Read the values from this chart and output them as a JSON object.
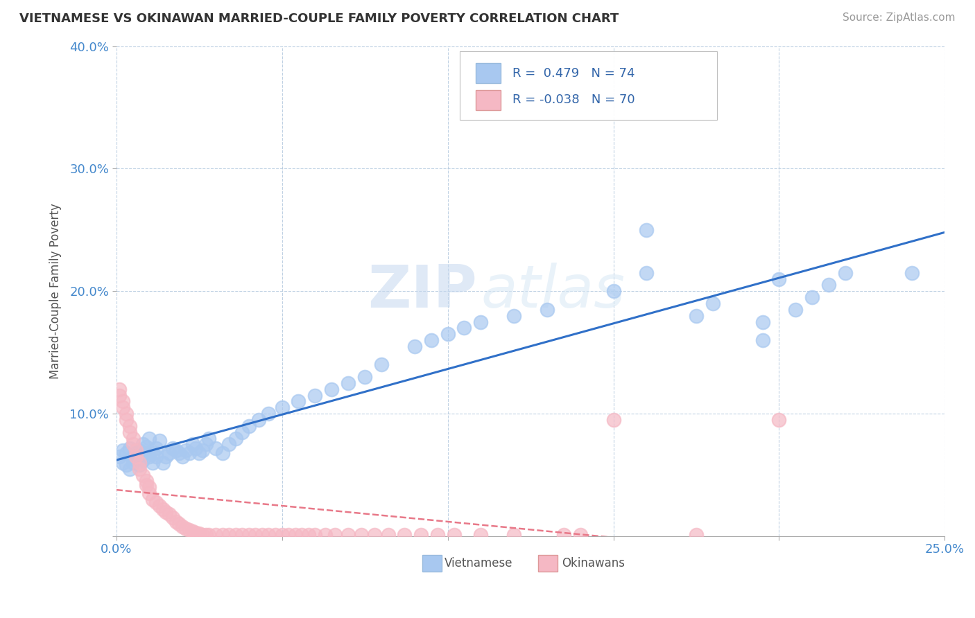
{
  "title": "VIETNAMESE VS OKINAWAN MARRIED-COUPLE FAMILY POVERTY CORRELATION CHART",
  "source": "Source: ZipAtlas.com",
  "ylabel": "Married-Couple Family Poverty",
  "xlim": [
    0.0,
    0.25
  ],
  "ylim": [
    0.0,
    0.4
  ],
  "xticks": [
    0.0,
    0.05,
    0.1,
    0.15,
    0.2,
    0.25
  ],
  "xticklabels": [
    "0.0%",
    "",
    "",
    "",
    "",
    "25.0%"
  ],
  "yticks": [
    0.0,
    0.1,
    0.2,
    0.3,
    0.4
  ],
  "yticklabels": [
    "",
    "10.0%",
    "20.0%",
    "30.0%",
    "40.0%"
  ],
  "blue_R": 0.479,
  "blue_N": 74,
  "pink_R": -0.038,
  "pink_N": 70,
  "blue_color": "#a8c8f0",
  "pink_color": "#f5b8c4",
  "blue_line_color": "#3070c8",
  "pink_line_color": "#e87888",
  "watermark_zip": "ZIP",
  "watermark_atlas": "atlas",
  "legend_label_blue": "Vietnamese",
  "legend_label_pink": "Okinawans",
  "blue_x": [
    0.001,
    0.002,
    0.002,
    0.003,
    0.003,
    0.004,
    0.004,
    0.005,
    0.005,
    0.006,
    0.006,
    0.007,
    0.007,
    0.008,
    0.008,
    0.009,
    0.009,
    0.01,
    0.01,
    0.011,
    0.011,
    0.012,
    0.012,
    0.013,
    0.014,
    0.015,
    0.016,
    0.017,
    0.018,
    0.019,
    0.02,
    0.021,
    0.022,
    0.023,
    0.024,
    0.025,
    0.026,
    0.027,
    0.028,
    0.03,
    0.032,
    0.034,
    0.036,
    0.038,
    0.04,
    0.043,
    0.046,
    0.05,
    0.055,
    0.06,
    0.065,
    0.07,
    0.075,
    0.08,
    0.09,
    0.095,
    0.1,
    0.105,
    0.11,
    0.12,
    0.13,
    0.15,
    0.16,
    0.175,
    0.18,
    0.195,
    0.2,
    0.205,
    0.21,
    0.215,
    0.22,
    0.195,
    0.16,
    0.24
  ],
  "blue_y": [
    0.065,
    0.07,
    0.06,
    0.068,
    0.058,
    0.072,
    0.055,
    0.065,
    0.06,
    0.068,
    0.063,
    0.07,
    0.058,
    0.075,
    0.062,
    0.068,
    0.073,
    0.065,
    0.08,
    0.068,
    0.06,
    0.072,
    0.065,
    0.078,
    0.06,
    0.065,
    0.068,
    0.072,
    0.07,
    0.068,
    0.065,
    0.07,
    0.068,
    0.075,
    0.072,
    0.068,
    0.07,
    0.075,
    0.08,
    0.072,
    0.068,
    0.075,
    0.08,
    0.085,
    0.09,
    0.095,
    0.1,
    0.105,
    0.11,
    0.115,
    0.12,
    0.125,
    0.13,
    0.14,
    0.155,
    0.16,
    0.165,
    0.17,
    0.175,
    0.18,
    0.185,
    0.2,
    0.215,
    0.18,
    0.19,
    0.175,
    0.21,
    0.185,
    0.195,
    0.205,
    0.215,
    0.16,
    0.25,
    0.215
  ],
  "pink_x": [
    0.001,
    0.001,
    0.002,
    0.002,
    0.003,
    0.003,
    0.004,
    0.004,
    0.005,
    0.005,
    0.006,
    0.006,
    0.007,
    0.007,
    0.008,
    0.009,
    0.009,
    0.01,
    0.01,
    0.011,
    0.012,
    0.013,
    0.014,
    0.015,
    0.016,
    0.017,
    0.018,
    0.019,
    0.02,
    0.021,
    0.022,
    0.023,
    0.024,
    0.025,
    0.026,
    0.027,
    0.028,
    0.03,
    0.032,
    0.034,
    0.036,
    0.038,
    0.04,
    0.042,
    0.044,
    0.046,
    0.048,
    0.05,
    0.052,
    0.054,
    0.056,
    0.058,
    0.06,
    0.063,
    0.066,
    0.07,
    0.074,
    0.078,
    0.082,
    0.087,
    0.092,
    0.097,
    0.102,
    0.11,
    0.12,
    0.135,
    0.15,
    0.175,
    0.2,
    0.14
  ],
  "pink_y": [
    0.12,
    0.115,
    0.11,
    0.105,
    0.1,
    0.095,
    0.09,
    0.085,
    0.08,
    0.075,
    0.07,
    0.065,
    0.06,
    0.055,
    0.05,
    0.045,
    0.042,
    0.04,
    0.035,
    0.03,
    0.028,
    0.025,
    0.022,
    0.02,
    0.018,
    0.015,
    0.012,
    0.01,
    0.008,
    0.006,
    0.005,
    0.004,
    0.003,
    0.002,
    0.001,
    0.001,
    0.001,
    0.001,
    0.001,
    0.001,
    0.001,
    0.001,
    0.001,
    0.001,
    0.001,
    0.001,
    0.001,
    0.001,
    0.001,
    0.001,
    0.001,
    0.001,
    0.001,
    0.001,
    0.001,
    0.001,
    0.001,
    0.001,
    0.001,
    0.001,
    0.001,
    0.001,
    0.001,
    0.001,
    0.001,
    0.001,
    0.095,
    0.001,
    0.095,
    0.001
  ]
}
